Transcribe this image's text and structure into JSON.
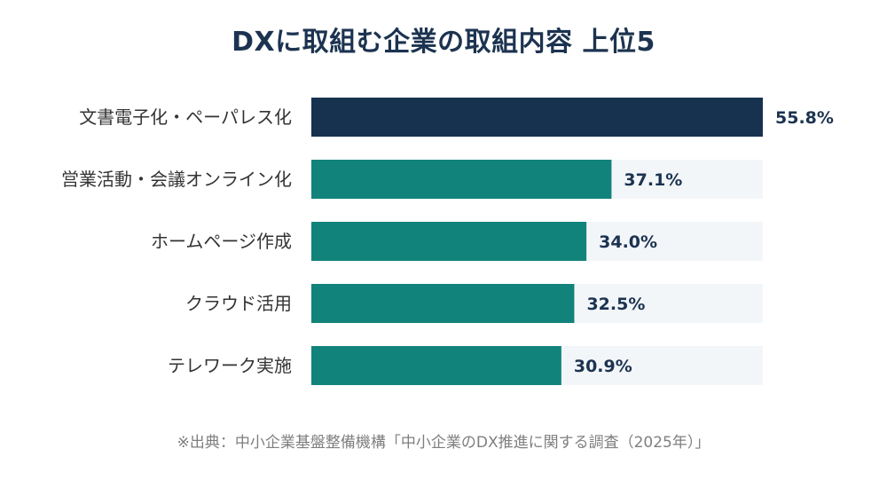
{
  "chart_data": {
    "type": "bar",
    "orientation": "horizontal",
    "title": "DXに取組む企業の取組内容 上位5",
    "categories": [
      "文書電子化・ペーパレス化",
      "営業活動・会議オンライン化",
      "ホームページ作成",
      "クラウド活用",
      "テレワーク実施"
    ],
    "values": [
      55.8,
      37.1,
      34.0,
      32.5,
      30.9
    ],
    "value_labels": [
      "55.8%",
      "37.1%",
      "34.0%",
      "32.5%",
      "30.9%"
    ],
    "xlim": [
      0,
      55.8
    ],
    "grid": false,
    "legend": "none",
    "source": "※出典：中小企業基盤整備機構「中小企業のDX推進に関する調査（2025年）」"
  },
  "colors": {
    "highlight": "#17324f",
    "bar": "#11837a",
    "track": "#f3f6f9",
    "title": "#1c3350",
    "label": "#333333",
    "source": "#7f7f7f"
  }
}
